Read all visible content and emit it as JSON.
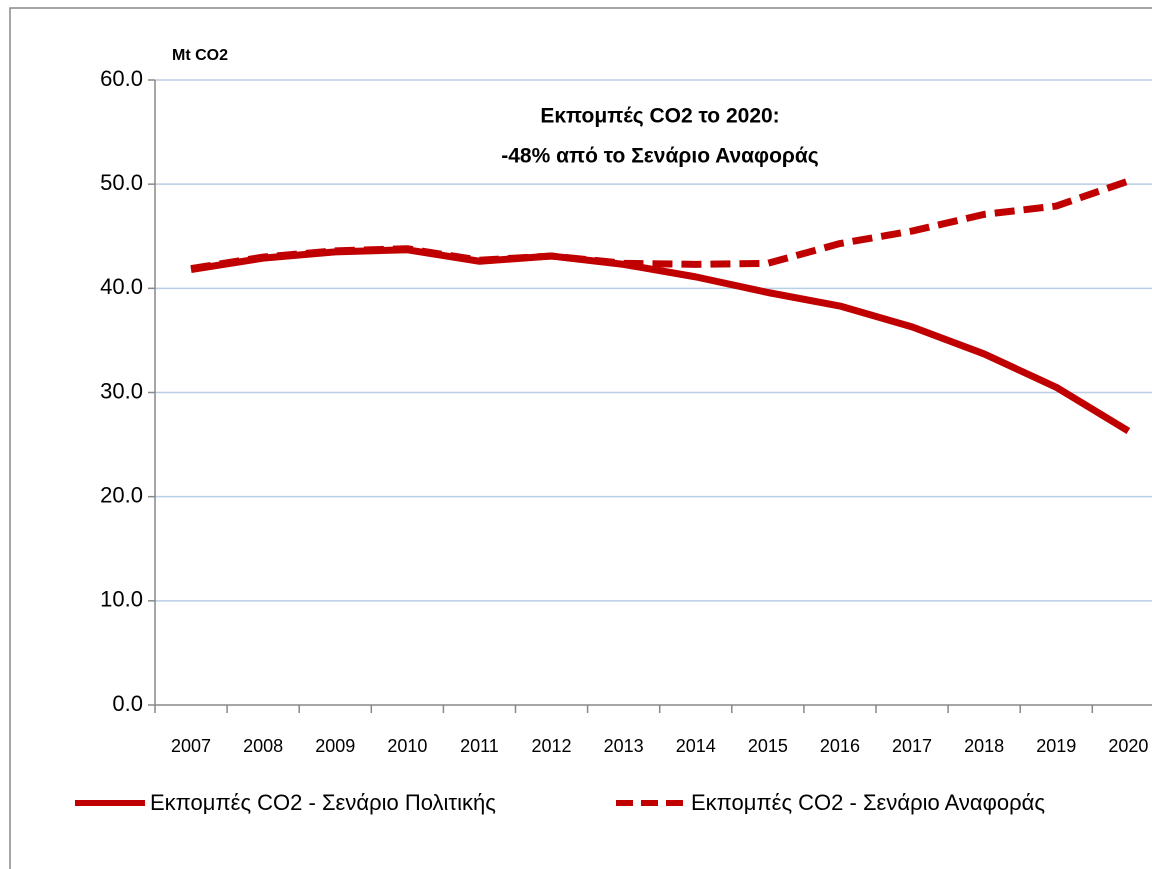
{
  "chart_data": {
    "type": "line",
    "y_label": "Mt CO2",
    "annotations": [
      "Εκπομπές CO2 το 2020:",
      "-48% από το Σενάριο Αναφοράς"
    ],
    "categories": [
      "2007",
      "2008",
      "2009",
      "2010",
      "2011",
      "2012",
      "2013",
      "2014",
      "2015",
      "2016",
      "2017",
      "2018",
      "2019",
      "2020"
    ],
    "series": [
      {
        "name": "Εκπομπές CO2 - Σενάριο Πολιτικής",
        "color": "#c00000",
        "dash": false,
        "values": [
          41.8,
          42.9,
          43.5,
          43.7,
          42.6,
          43.1,
          42.3,
          41.1,
          39.6,
          38.3,
          36.3,
          33.7,
          30.5,
          26.3
        ]
      },
      {
        "name": "Εκπομπές CO2 - Σενάριο Αναφοράς",
        "color": "#c00000",
        "dash": true,
        "values": [
          41.9,
          43.0,
          43.6,
          43.8,
          42.7,
          43.1,
          42.4,
          42.3,
          42.4,
          44.3,
          45.5,
          47.1,
          47.9,
          50.3
        ]
      }
    ],
    "ylim": [
      0,
      60
    ],
    "yticks": [
      {
        "value": 0,
        "label": "0.0"
      },
      {
        "value": 10,
        "label": "10.0"
      },
      {
        "value": 20,
        "label": "20.0"
      },
      {
        "value": 30,
        "label": "30.0"
      },
      {
        "value": 40,
        "label": "40.0"
      },
      {
        "value": 50,
        "label": "50.0"
      },
      {
        "value": 60,
        "label": "60.0"
      }
    ],
    "grid": true,
    "legend": "bottom"
  }
}
